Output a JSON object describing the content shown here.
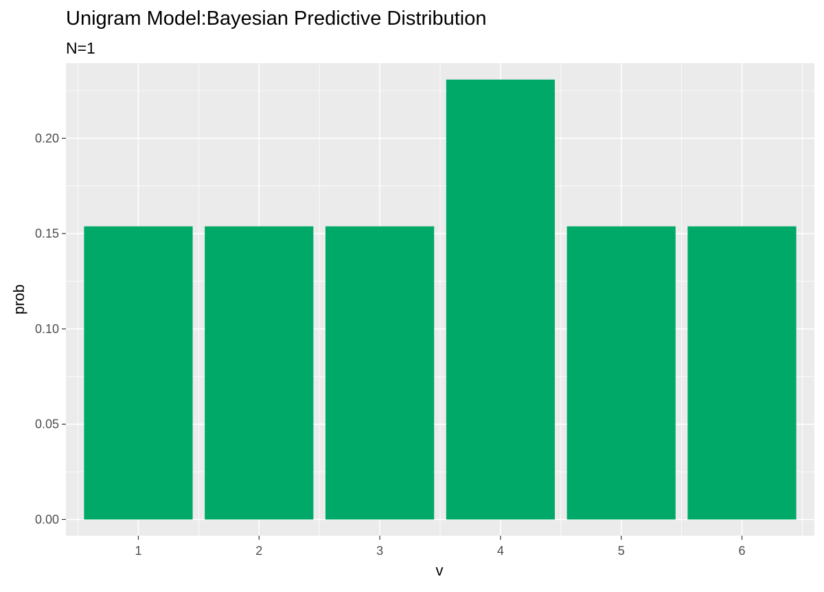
{
  "chart_data": {
    "type": "bar",
    "title": "Unigram Model:Bayesian Predictive Distribution",
    "subtitle": "N=1",
    "xlabel": "v",
    "ylabel": "prob",
    "categories": [
      "1",
      "2",
      "3",
      "4",
      "5",
      "6"
    ],
    "values": [
      0.1538,
      0.1538,
      0.1538,
      0.2308,
      0.1538,
      0.1538
    ],
    "ylim": [
      -0.0085,
      0.2394
    ],
    "yticks": [
      0.0,
      0.05,
      0.1,
      0.15,
      0.2
    ],
    "ytick_labels": [
      "0.00",
      "0.05",
      "0.10",
      "0.15",
      "0.20"
    ],
    "grid": true,
    "legend": "none",
    "bar_color": "#00A968",
    "panel_background": "#EBEBEB",
    "grid_color": "#FFFFFF"
  }
}
